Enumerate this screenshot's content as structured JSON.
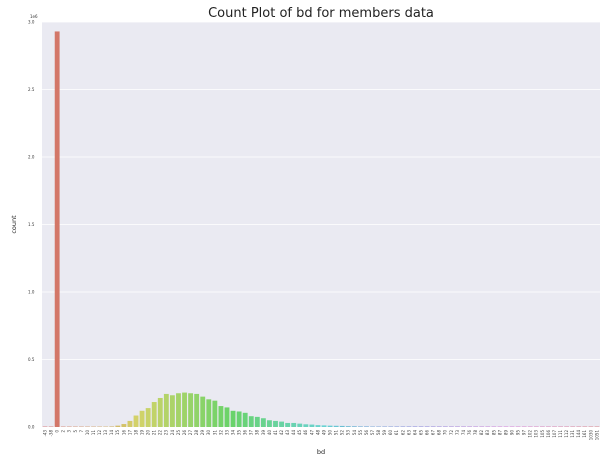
{
  "chart_data": {
    "type": "bar",
    "title": "Count Plot of bd for members data",
    "xlabel": "bd",
    "ylabel": "count",
    "y_scale_label": "1e6",
    "ylim": [
      0,
      3.0
    ],
    "ytick_values": [
      0.0,
      0.5,
      1.0,
      1.5,
      2.0,
      2.5,
      3.0
    ],
    "ytick_labels": [
      "0.0",
      "0.5",
      "1.0",
      "1.5",
      "2.0",
      "2.5",
      "3.0"
    ],
    "grid": true,
    "categories": [
      "-43",
      "-38",
      "0",
      "2",
      "3",
      "5",
      "7",
      "10",
      "11",
      "12",
      "13",
      "14",
      "15",
      "16",
      "17",
      "18",
      "19",
      "20",
      "21",
      "22",
      "23",
      "24",
      "25",
      "26",
      "27",
      "28",
      "29",
      "30",
      "31",
      "32",
      "33",
      "34",
      "35",
      "36",
      "37",
      "38",
      "39",
      "40",
      "41",
      "42",
      "43",
      "44",
      "45",
      "46",
      "47",
      "48",
      "49",
      "50",
      "51",
      "52",
      "53",
      "54",
      "55",
      "56",
      "57",
      "58",
      "59",
      "60",
      "61",
      "62",
      "63",
      "64",
      "65",
      "66",
      "67",
      "68",
      "70",
      "72",
      "73",
      "74",
      "76",
      "78",
      "82",
      "83",
      "85",
      "87",
      "89",
      "90",
      "95",
      "97",
      "102",
      "103",
      "105",
      "106",
      "107",
      "111",
      "112",
      "131",
      "144",
      "161",
      "1030",
      "1051"
    ],
    "values": [
      0.0005,
      0.0005,
      2.93,
      0.0005,
      0.0005,
      0.0005,
      0.0005,
      0.0005,
      0.0008,
      0.0012,
      0.002,
      0.004,
      0.01,
      0.022,
      0.045,
      0.085,
      0.12,
      0.14,
      0.185,
      0.215,
      0.245,
      0.235,
      0.25,
      0.255,
      0.25,
      0.245,
      0.225,
      0.205,
      0.195,
      0.155,
      0.145,
      0.12,
      0.115,
      0.105,
      0.08,
      0.075,
      0.065,
      0.05,
      0.045,
      0.04,
      0.03,
      0.03,
      0.025,
      0.02,
      0.018,
      0.014,
      0.012,
      0.01,
      0.009,
      0.008,
      0.006,
      0.005,
      0.004,
      0.004,
      0.003,
      0.002,
      0.002,
      0.0015,
      0.0015,
      0.0012,
      0.001,
      0.001,
      0.001,
      0.0008,
      0.0008,
      0.0008,
      0.0007,
      0.0006,
      0.0006,
      0.0006,
      0.0005,
      0.0005,
      0.0005,
      0.0005,
      0.0005,
      0.0005,
      0.0005,
      0.0005,
      0.0005,
      0.0005,
      0.0005,
      0.0005,
      0.0005,
      0.0005,
      0.0005,
      0.0005,
      0.0005,
      0.0005,
      0.0005,
      0.0005,
      0.0005,
      0.0005
    ]
  },
  "colors": {
    "plot_background": "#eaeaf2",
    "grid": "#ffffff",
    "text": "#222222"
  }
}
